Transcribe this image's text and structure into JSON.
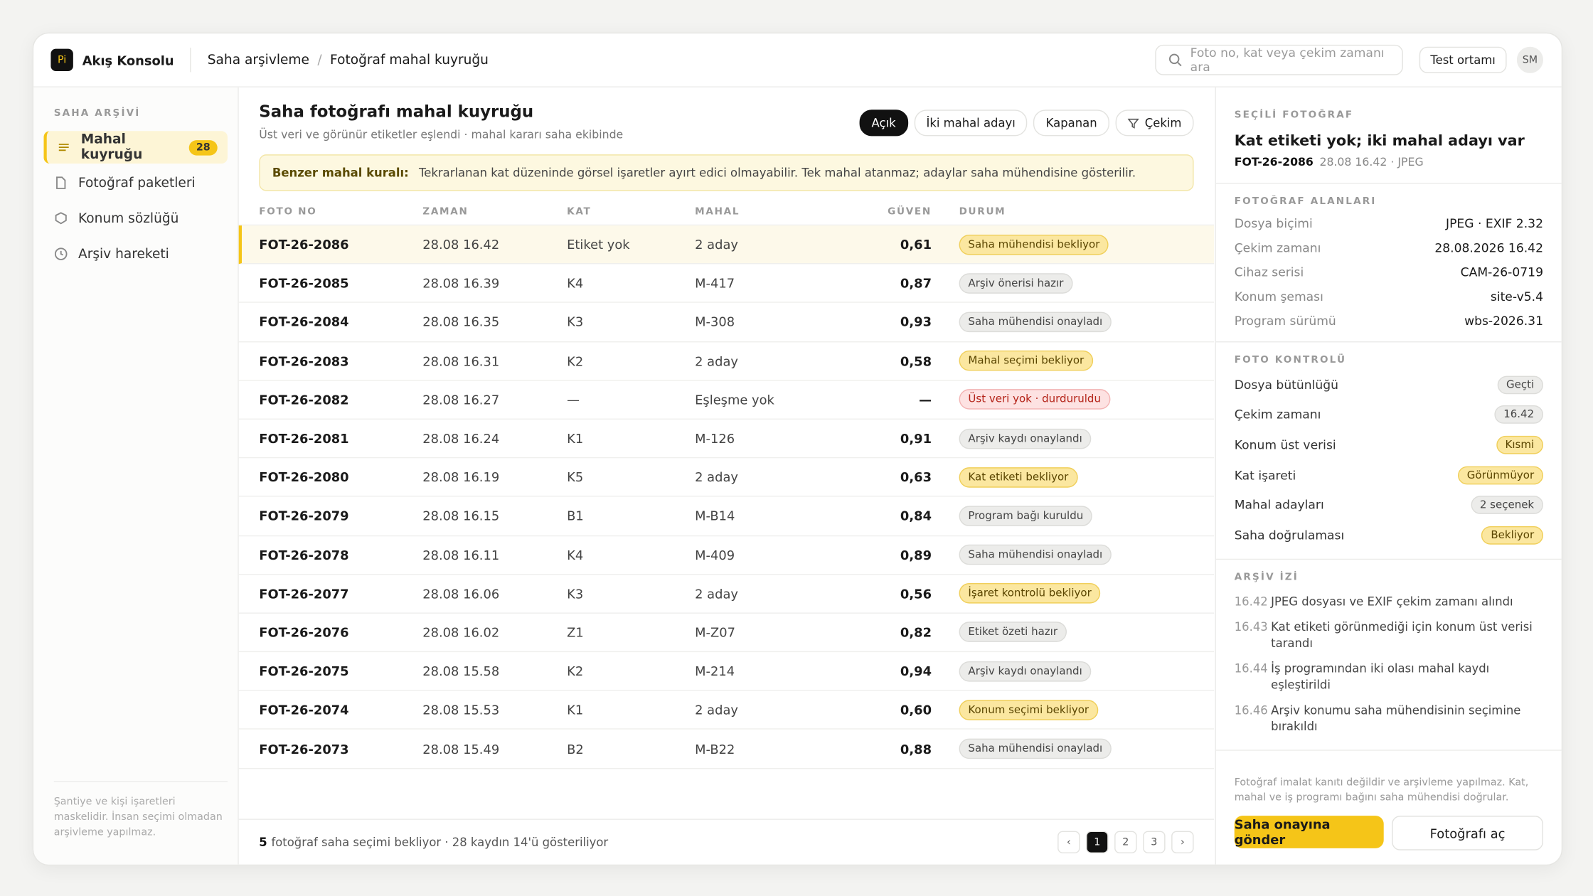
{
  "header": {
    "logo": "Pi",
    "brand": "Akış Konsolu",
    "breadcrumb": [
      "Saha arşivleme",
      "Fotoğraf mahal kuyruğu"
    ],
    "search_placeholder": "Foto no, kat veya çekim zamanı ara",
    "environment": "Test ortamı",
    "avatar": "SM"
  },
  "sidebar": {
    "section": "SAHA ARŞİVİ",
    "items": [
      {
        "label": "Mahal kuyruğu",
        "badge": "28"
      },
      {
        "label": "Fotoğraf paketleri"
      },
      {
        "label": "Konum sözlüğü"
      },
      {
        "label": "Arşiv hareketi"
      }
    ],
    "footer": "Şantiye ve kişi işaretleri maskelidir. İnsan seçimi olmadan arşivleme yapılmaz."
  },
  "main": {
    "title": "Saha fotoğrafı mahal kuyruğu",
    "subtitle": "Üst veri ve görünür etiketler eşlendi · mahal kararı saha ekibinde",
    "filters": [
      "Açık",
      "İki mahal adayı",
      "Kapanan",
      "Çekim"
    ],
    "notice": {
      "label": "Benzer mahal kuralı:",
      "text": "Tekrarlanan kat düzeninde görsel işaretler ayırt edici olmayabilir. Tek mahal atanmaz; adaylar saha mühendisine gösterilir."
    },
    "table": {
      "columns": [
        "FOTO NO",
        "ZAMAN",
        "KAT",
        "MAHAL",
        "GÜVEN",
        "DURUM"
      ],
      "rows": [
        [
          "FOT-26-2086",
          "28.08 16.42",
          "Etiket yok",
          "2 aday",
          "0,61",
          "Saha mühendisi bekliyor"
        ],
        [
          "FOT-26-2085",
          "28.08 16.39",
          "K4",
          "M-417",
          "0,87",
          "Arşiv önerisi hazır"
        ],
        [
          "FOT-26-2084",
          "28.08 16.35",
          "K3",
          "M-308",
          "0,93",
          "Saha mühendisi onayladı"
        ],
        [
          "FOT-26-2083",
          "28.08 16.31",
          "K2",
          "2 aday",
          "0,58",
          "Mahal seçimi bekliyor"
        ],
        [
          "FOT-26-2082",
          "28.08 16.27",
          "—",
          "Eşleşme yok",
          "—",
          "Üst veri yok · durduruldu"
        ],
        [
          "FOT-26-2081",
          "28.08 16.24",
          "K1",
          "M-126",
          "0,91",
          "Arşiv kaydı onaylandı"
        ],
        [
          "FOT-26-2080",
          "28.08 16.19",
          "K5",
          "2 aday",
          "0,63",
          "Kat etiketi bekliyor"
        ],
        [
          "FOT-26-2079",
          "28.08 16.15",
          "B1",
          "M-B14",
          "0,84",
          "Program bağı kuruldu"
        ],
        [
          "FOT-26-2078",
          "28.08 16.11",
          "K4",
          "M-409",
          "0,89",
          "Saha mühendisi onayladı"
        ],
        [
          "FOT-26-2077",
          "28.08 16.06",
          "K3",
          "2 aday",
          "0,56",
          "İşaret kontrolü bekliyor"
        ],
        [
          "FOT-26-2076",
          "28.08 16.02",
          "Z1",
          "M-Z07",
          "0,82",
          "Etiket özeti hazır"
        ],
        [
          "FOT-26-2075",
          "28.08 15.58",
          "K2",
          "M-214",
          "0,94",
          "Arşiv kaydı onaylandı"
        ],
        [
          "FOT-26-2074",
          "28.08 15.53",
          "K1",
          "2 aday",
          "0,60",
          "Konum seçimi bekliyor"
        ],
        [
          "FOT-26-2073",
          "28.08 15.49",
          "B2",
          "M-B22",
          "0,88",
          "Saha mühendisi onayladı"
        ]
      ],
      "status_colors": [
        "#fbe7a0",
        "#ececea",
        "#ececea",
        "#fbe7a0",
        "#fde2e2",
        "#ececea",
        "#fbe7a0",
        "#ececea",
        "#ececea",
        "#fbe7a0",
        "#ececea",
        "#ececea",
        "#fbe7a0",
        "#ececea"
      ]
    },
    "footer": {
      "count": "5",
      "text": "fotoğraf saha seçimi bekliyor · 28 kaydın 14'ü gösteriliyor",
      "pages": [
        "‹",
        "1",
        "2",
        "3",
        "›"
      ]
    }
  },
  "detail": {
    "section": "SEÇİLİ FOTOĞRAF",
    "title": "Kat etiketi yok; iki mahal adayı var",
    "id": "FOT-26-2086",
    "meta": "28.08 16.42 · JPEG",
    "fields": {
      "section": "FOTOĞRAF ALANLARI",
      "rows": [
        [
          "Dosya biçimi",
          "JPEG · EXIF 2.32"
        ],
        [
          "Çekim zamanı",
          "28.08.2026 16.42"
        ],
        [
          "Cihaz serisi",
          "CAM-26-0719"
        ],
        [
          "Konum şeması",
          "site-v5.4"
        ],
        [
          "Program sürümü",
          "wbs-2026.31"
        ]
      ]
    },
    "checks": {
      "section": "FOTO KONTROLÜ",
      "rows": [
        [
          "Dosya bütünlüğü",
          "Geçti"
        ],
        [
          "Çekim zamanı",
          "16.42"
        ],
        [
          "Konum üst verisi",
          "Kısmi"
        ],
        [
          "Kat işareti",
          "Görünmüyor"
        ],
        [
          "Mahal adayları",
          "2 seçenek"
        ],
        [
          "Saha doğrulaması",
          "Bekliyor"
        ]
      ],
      "colors": [
        "#ececea",
        "#ececea",
        "#fbe7a0",
        "#fbe7a0",
        "#ececea",
        "#fbe7a0"
      ]
    },
    "trail": {
      "section": "ARŞİV İZİ",
      "rows": [
        [
          "16.42",
          "JPEG dosyası ve EXIF çekim zamanı alındı"
        ],
        [
          "16.43",
          "Kat etiketi görünmediği için konum üst verisi tarandı"
        ],
        [
          "16.44",
          "İş programından iki olası mahal kaydı eşleştirildi"
        ],
        [
          "16.46",
          "Arşiv konumu saha mühendisinin seçimine bırakıldı"
        ]
      ]
    },
    "disclaimer": "Fotoğraf imalat kanıtı değildir ve arşivleme yapılmaz. Kat, mahal ve iş programı bağını saha mühendisi doğrular.",
    "actions": [
      "Saha onayına gönder",
      "Fotoğrafı aç"
    ]
  }
}
